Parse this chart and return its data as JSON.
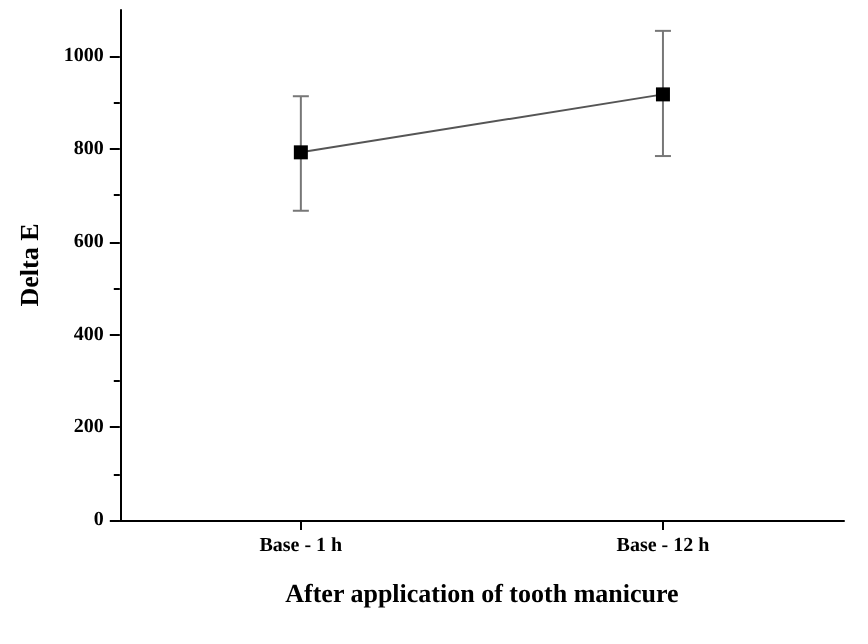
{
  "chart_data": {
    "type": "line",
    "xlabel": "After application of tooth manicure",
    "ylabel": "Delta E",
    "categories": [
      "Base - 1 h",
      "Base - 12 h"
    ],
    "series": [
      {
        "color": "#000000",
        "values": [
          793,
          918
        ],
        "errors": [
          [
            667,
            914
          ],
          [
            785,
            1055
          ]
        ]
      }
    ],
    "ylim": [
      0,
      1100
    ],
    "yticks": [
      0,
      200,
      400,
      600,
      800,
      1000
    ],
    "marker": "square",
    "line_style": "solid"
  }
}
